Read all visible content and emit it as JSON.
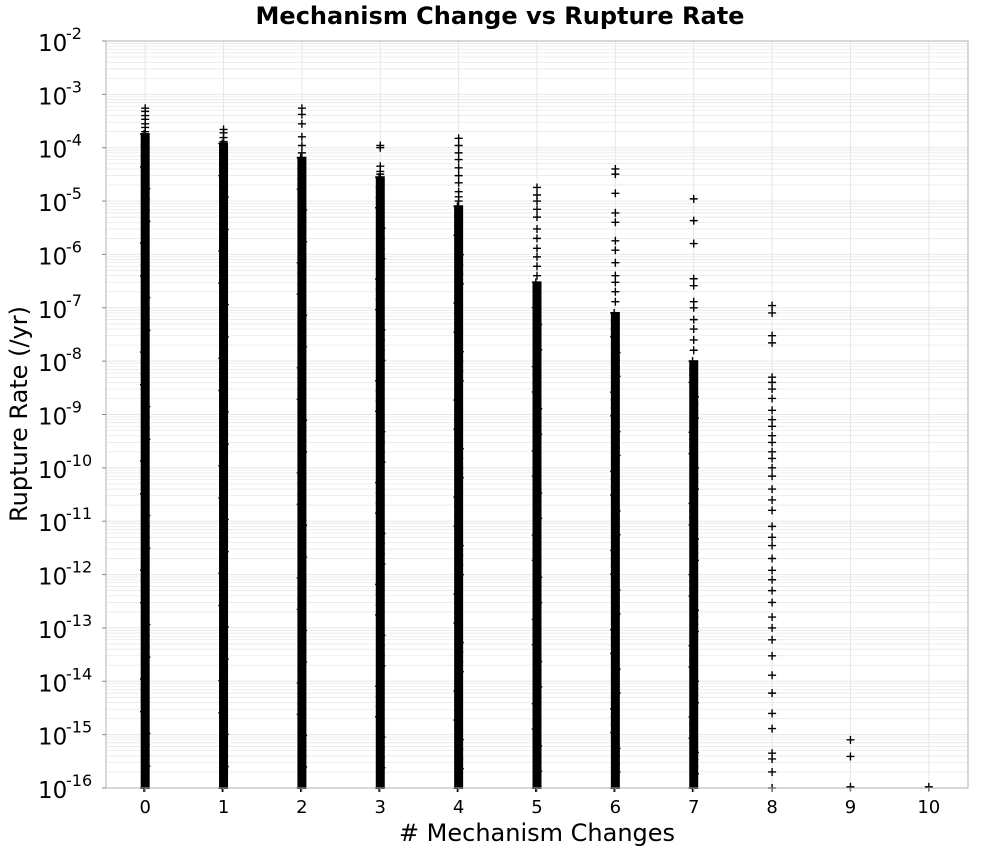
{
  "chart_data": {
    "type": "scatter",
    "title": "Mechanism Change vs Rupture Rate",
    "xlabel": "# Mechanism Changes",
    "ylabel": "Rupture Rate (/yr)",
    "x_ticks": [
      "0",
      "1",
      "2",
      "3",
      "4",
      "5",
      "6",
      "7",
      "8",
      "9",
      "10"
    ],
    "y_ticks": [
      {
        "base": "10",
        "exp": "-2",
        "value": 0.01
      },
      {
        "base": "10",
        "exp": "-3",
        "value": 0.001
      },
      {
        "base": "10",
        "exp": "-4",
        "value": 0.0001
      },
      {
        "base": "10",
        "exp": "-5",
        "value": 1e-05
      },
      {
        "base": "10",
        "exp": "-6",
        "value": 1e-06
      },
      {
        "base": "10",
        "exp": "-7",
        "value": 1e-07
      },
      {
        "base": "10",
        "exp": "-8",
        "value": 1e-08
      },
      {
        "base": "10",
        "exp": "-9",
        "value": 1e-09
      },
      {
        "base": "10",
        "exp": "-10",
        "value": 1e-10
      },
      {
        "base": "10",
        "exp": "-11",
        "value": 1e-11
      },
      {
        "base": "10",
        "exp": "-12",
        "value": 1e-12
      },
      {
        "base": "10",
        "exp": "-13",
        "value": 1e-13
      },
      {
        "base": "10",
        "exp": "-14",
        "value": 1e-14
      },
      {
        "base": "10",
        "exp": "-15",
        "value": 1e-15
      },
      {
        "base": "10",
        "exp": "-16",
        "value": 1e-16
      }
    ],
    "xlim": [
      -0.5,
      10.5
    ],
    "ylim": [
      1e-16,
      0.01
    ],
    "y_scale": "log",
    "grid": true,
    "marker": "plus",
    "marker_color": "#000000",
    "grid_color": "#e6e6e6",
    "series": [
      {
        "x": 0,
        "dense_min": 1e-16,
        "dense_max": 0.00018,
        "values": [
          0.00055,
          0.00048,
          0.0004,
          0.00034,
          0.00028,
          0.00024,
          0.0002
        ]
      },
      {
        "x": 1,
        "dense_min": 1e-16,
        "dense_max": 0.00012,
        "values": [
          0.00022,
          0.00019,
          0.000155,
          0.00013
        ]
      },
      {
        "x": 2,
        "dense_min": 1e-16,
        "dense_max": 6.5e-05,
        "values": [
          0.00055,
          0.00042,
          0.00028,
          0.00016,
          0.00011,
          8e-05
        ]
      },
      {
        "x": 3,
        "dense_min": 1e-16,
        "dense_max": 2.8e-05,
        "values": [
          0.00011,
          0.0001,
          4.5e-05,
          3.6e-05,
          3.2e-05
        ]
      },
      {
        "x": 4,
        "dense_min": 1e-16,
        "dense_max": 8e-06,
        "values": [
          0.00015,
          0.00011,
          8e-05,
          6e-05,
          4.2e-05,
          3e-05,
          2.2e-05,
          1.5e-05,
          1.2e-05,
          1e-05
        ]
      },
      {
        "x": 5,
        "dense_min": 1e-16,
        "dense_max": 3e-07,
        "values": [
          1.8e-05,
          1.3e-05,
          1e-05,
          7e-06,
          5e-06,
          3e-06,
          2e-06,
          1.3e-06,
          9e-07,
          6e-07,
          4e-07
        ]
      },
      {
        "x": 6,
        "dense_min": 1e-16,
        "dense_max": 8e-08,
        "values": [
          4e-05,
          3.2e-05,
          1.4e-05,
          6e-06,
          4e-06,
          1.8e-06,
          1.2e-06,
          7e-07,
          4e-07,
          3e-07,
          2e-07,
          1.3e-07
        ]
      },
      {
        "x": 7,
        "dense_min": 1e-16,
        "dense_max": 1e-08,
        "values": [
          1.1e-05,
          4.3e-06,
          1.6e-06,
          3.5e-07,
          2.6e-07,
          1.3e-07,
          1e-07,
          6e-08,
          4e-08,
          2.5e-08,
          1.6e-08
        ]
      },
      {
        "x": 8,
        "dense_min": null,
        "dense_max": null,
        "values": [
          1.1e-07,
          8e-08,
          3e-08,
          2.2e-08,
          5e-09,
          4e-09,
          3e-09,
          2e-09,
          1.2e-09,
          8e-10,
          6e-10,
          4e-10,
          3e-10,
          2e-10,
          1.5e-10,
          1e-10,
          7e-11,
          4e-11,
          2.5e-11,
          1.6e-11,
          8e-12,
          5e-12,
          3.5e-12,
          2e-12,
          1.2e-12,
          8e-13,
          5e-13,
          3e-13,
          1.6e-13,
          1e-13,
          6e-14,
          3e-14,
          1.3e-14,
          6e-15,
          2.5e-15,
          1.3e-15,
          4.5e-16,
          3.5e-16,
          2e-16,
          1e-16
        ]
      },
      {
        "x": 9,
        "dense_min": null,
        "dense_max": null,
        "values": [
          8e-16,
          3.9e-16,
          1.05e-16
        ]
      },
      {
        "x": 10,
        "dense_min": null,
        "dense_max": null,
        "values": [
          1.05e-16
        ]
      }
    ]
  }
}
